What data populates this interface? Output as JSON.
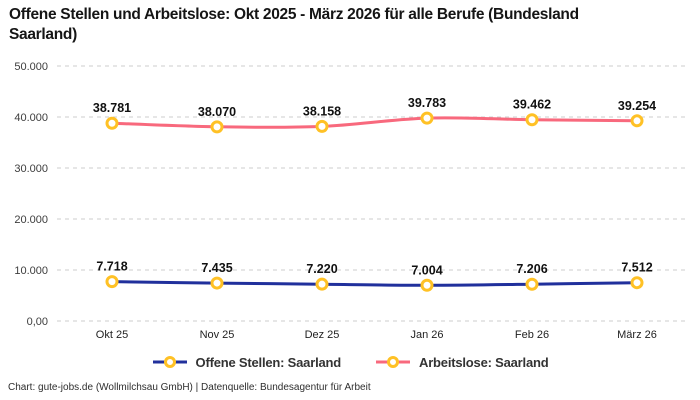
{
  "header": {
    "title": "Offene Stellen und Arbeitslose: Okt 2025 - März 2026 für alle Berufe (Bundesland Saarland)"
  },
  "chart_data": {
    "type": "line",
    "title": "Offene Stellen und Arbeitslose: Okt 2025 - März 2026 für alle Berufe (Bundesland Saarland)",
    "categories": [
      "Okt 25",
      "Nov 25",
      "Dez 25",
      "Jan 26",
      "Feb 26",
      "März 26"
    ],
    "series": [
      {
        "name": "Offene Stellen: Saarland",
        "color": "#21309c",
        "values": [
          7718,
          7435,
          7220,
          7004,
          7206,
          7512
        ],
        "point_labels": [
          "7.718",
          "7.435",
          "7.220",
          "7.004",
          "7.206",
          "7.512"
        ]
      },
      {
        "name": "Arbeitslose: Saarland",
        "color": "#f8697d",
        "values": [
          38781,
          38070,
          38158,
          39783,
          39462,
          39254
        ],
        "point_labels": [
          "38.781",
          "38.070",
          "38.158",
          "39.783",
          "39.462",
          "39.254"
        ]
      }
    ],
    "marker": {
      "fill": "#ffffff",
      "stroke": "#ffc125"
    },
    "y_axis": {
      "range": [
        0,
        50000
      ],
      "ticks": [
        {
          "value": 0,
          "label": "0,00"
        },
        {
          "value": 10000,
          "label": "10.000"
        },
        {
          "value": 20000,
          "label": "20.000"
        },
        {
          "value": 30000,
          "label": "30.000"
        },
        {
          "value": 40000,
          "label": "40.000"
        },
        {
          "value": 50000,
          "label": "50.000"
        }
      ]
    },
    "grid": {
      "style": "dashed",
      "color": "#cccccc",
      "horizontal_only": true
    },
    "legend_position": "bottom",
    "colors": {
      "label_text": "#111111",
      "tick_text": "#3d3d3d"
    }
  },
  "footer": {
    "credit": "Chart: gute-jobs.de (Wollmilchsau GmbH) | Datenquelle: Bundesagentur für Arbeit"
  }
}
